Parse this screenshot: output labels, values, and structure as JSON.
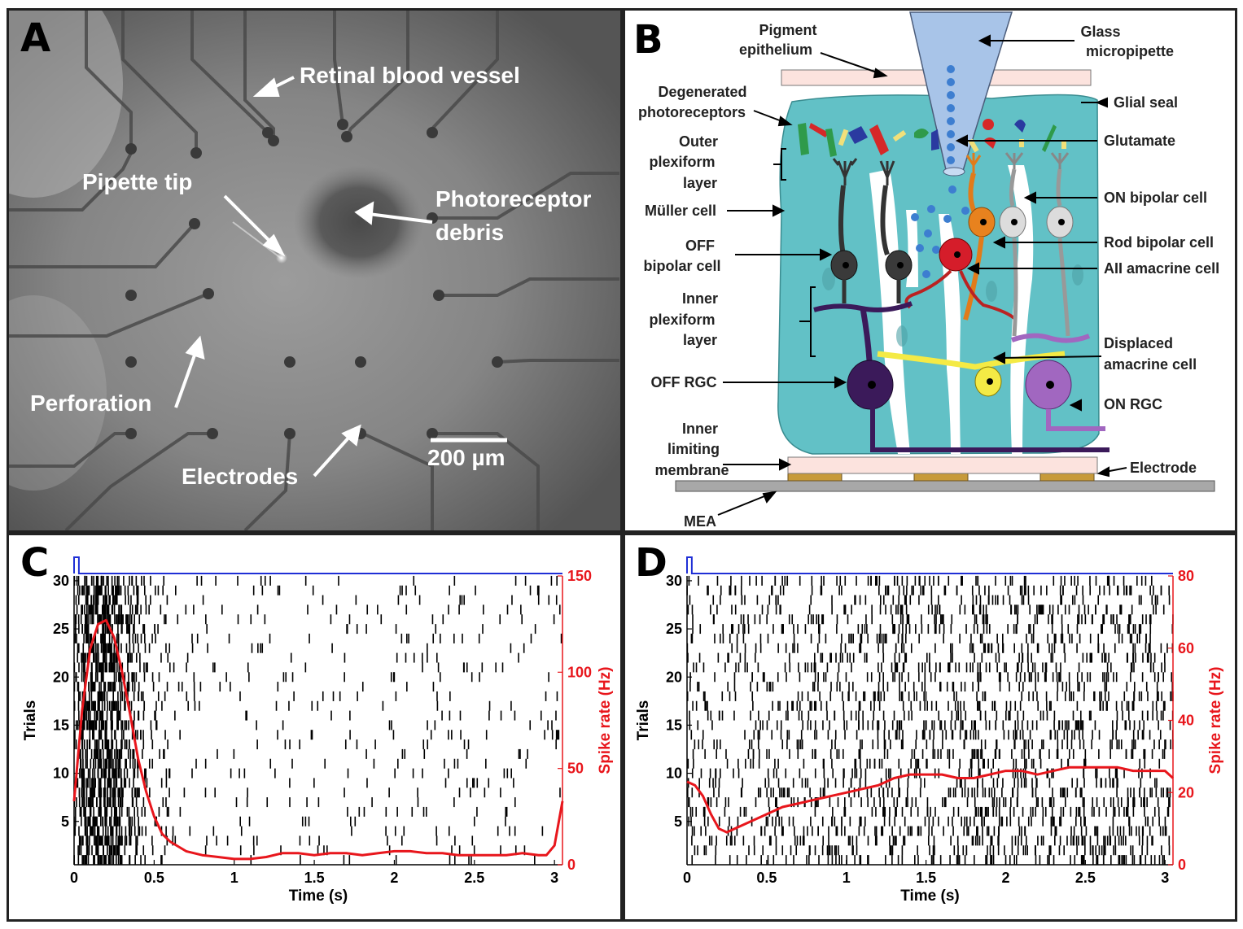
{
  "panels": {
    "A": {
      "label": "A",
      "annotations": [
        "Retinal blood vessel",
        "Pipette tip",
        "Photoreceptor",
        "debris",
        "Perforation",
        "Electrodes"
      ],
      "scale_bar": "200 µm"
    },
    "B": {
      "label": "B",
      "left_labels": [
        "Degenerated",
        "photoreceptors",
        "Outer",
        "plexiform",
        "layer",
        "Müller cell",
        "OFF",
        "bipolar cell",
        "Inner",
        "plexiform",
        "layer",
        "OFF RGC",
        "Inner",
        "limiting",
        "membrane",
        "MEA"
      ],
      "top_labels": [
        "Pigment",
        "epithelium",
        "Glass",
        "micropipette"
      ],
      "right_labels": [
        "Glial seal",
        "Glutamate",
        "ON bipolar cell",
        "Rod bipolar cell",
        "AII amacrine cell",
        "Displaced",
        "amacrine cell",
        "ON RGC",
        "Electrode"
      ]
    },
    "C": {
      "label": "C"
    },
    "D": {
      "label": "D"
    }
  },
  "chart_data": [
    {
      "panel": "C",
      "type": "raster",
      "xlabel": "Time (s)",
      "ylabel": "Trials",
      "y2label": "Spike rate (Hz)",
      "xlim": [
        0,
        3.05
      ],
      "ylim": [
        0.5,
        30.5
      ],
      "y2lim": [
        0,
        150
      ],
      "xticks": [
        "0",
        "0.5",
        "1",
        "1.5",
        "2",
        "2.5",
        "3"
      ],
      "yticks": [
        "5",
        "10",
        "15",
        "20",
        "25",
        "30"
      ],
      "y2ticks": [
        "0",
        "50",
        "100",
        "150"
      ],
      "raster_color": "#000000",
      "rate_color": "#e8161c",
      "stim_color": "#1f2fd6",
      "stimulus": {
        "onset": 0.0,
        "offset": 0.03
      },
      "spike_rate": {
        "t": [
          0,
          0.05,
          0.1,
          0.15,
          0.2,
          0.25,
          0.3,
          0.35,
          0.4,
          0.45,
          0.5,
          0.55,
          0.6,
          0.7,
          0.8,
          0.9,
          1.0,
          1.1,
          1.2,
          1.3,
          1.4,
          1.5,
          1.6,
          1.7,
          1.8,
          1.9,
          2.0,
          2.1,
          2.2,
          2.3,
          2.4,
          2.5,
          2.6,
          2.7,
          2.8,
          2.9,
          2.95,
          3.0,
          3.05
        ],
        "hz": [
          33,
          80,
          112,
          125,
          127,
          118,
          100,
          78,
          55,
          38,
          25,
          16,
          12,
          7,
          5,
          4,
          3,
          3,
          4,
          6,
          6,
          5,
          6,
          6,
          5,
          6,
          7,
          7,
          6,
          6,
          5,
          5,
          5,
          5,
          6,
          5,
          5,
          10,
          33
        ]
      },
      "spike_density": [
        {
          "t0": 0.0,
          "t1": 0.05,
          "rate": 60
        },
        {
          "t0": 0.05,
          "t1": 0.3,
          "rate": 120
        },
        {
          "t0": 0.3,
          "t1": 0.45,
          "rate": 45
        },
        {
          "t0": 0.45,
          "t1": 0.6,
          "rate": 15
        },
        {
          "t0": 0.6,
          "t1": 3.05,
          "rate": 5
        }
      ]
    },
    {
      "panel": "D",
      "type": "raster",
      "xlabel": "Time (s)",
      "ylabel": "Trials",
      "y2label": "Spike rate (Hz)",
      "xlim": [
        0,
        3.05
      ],
      "ylim": [
        0.5,
        30.5
      ],
      "y2lim": [
        0,
        80
      ],
      "xticks": [
        "0",
        "0.5",
        "1",
        "1.5",
        "2",
        "2.5",
        "3"
      ],
      "yticks": [
        "5",
        "10",
        "15",
        "20",
        "25",
        "30"
      ],
      "y2ticks": [
        "0",
        "20",
        "40",
        "60",
        "80"
      ],
      "raster_color": "#000000",
      "rate_color": "#e8161c",
      "stim_color": "#1f2fd6",
      "stimulus": {
        "onset": 0.0,
        "offset": 0.03
      },
      "spike_rate": {
        "t": [
          0,
          0.05,
          0.1,
          0.15,
          0.2,
          0.25,
          0.3,
          0.4,
          0.5,
          0.6,
          0.7,
          0.8,
          0.9,
          1.0,
          1.1,
          1.2,
          1.3,
          1.4,
          1.5,
          1.6,
          1.7,
          1.8,
          1.9,
          2.0,
          2.1,
          2.2,
          2.3,
          2.4,
          2.5,
          2.6,
          2.7,
          2.8,
          2.9,
          3.0,
          3.05
        ],
        "hz": [
          23,
          22,
          19,
          14,
          10,
          9,
          10,
          12,
          14,
          16,
          17,
          18,
          19,
          20,
          21,
          22,
          24,
          25,
          25,
          25,
          24,
          24,
          25,
          26,
          26,
          25,
          26,
          27,
          27,
          27,
          27,
          26,
          26,
          26,
          24
        ]
      },
      "spike_density": [
        {
          "t0": 0.0,
          "t1": 0.05,
          "rate": 25
        },
        {
          "t0": 0.05,
          "t1": 0.5,
          "rate": 15
        },
        {
          "t0": 0.5,
          "t1": 1.3,
          "rate": 22
        },
        {
          "t0": 1.3,
          "t1": 3.05,
          "rate": 26
        }
      ]
    }
  ]
}
